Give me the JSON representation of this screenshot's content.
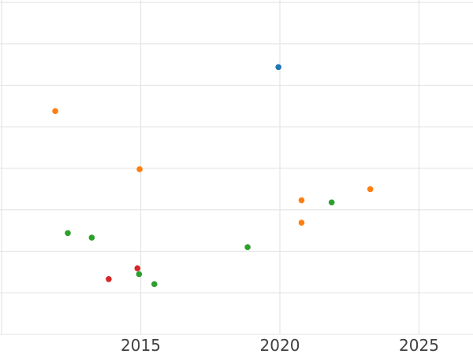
{
  "chart_data": {
    "type": "scatter",
    "title": "",
    "xlabel": "",
    "ylabel": "",
    "x_axis": {
      "tick_labels": [
        "2015",
        "2020",
        "2025"
      ],
      "tick_years": [
        2015,
        2020,
        2025
      ],
      "gridline_years": [
        2010,
        2015,
        2020,
        2025
      ],
      "range": [
        2009.94,
        2026.94
      ]
    },
    "y_axis": {
      "tick_labels_visible": false,
      "note": "y tick labels are not visible in the image (cropped); y values given in gridline units counted up from the bottom visible gridline",
      "gridline_units": [
        0,
        1,
        2,
        3,
        4,
        5,
        6,
        7,
        8
      ],
      "range": [
        -0.47,
        8.06
      ]
    },
    "grid": {
      "visible": true,
      "color": "#e6e6e6"
    },
    "legend": {
      "visible": false
    },
    "background": "#ffffff",
    "tick_label_color": "#404040",
    "marker": {
      "shape": "circle",
      "radius_px": 3.8
    },
    "series": [
      {
        "name": "blue",
        "color": "#1f77b4",
        "points": [
          {
            "x": 2019.95,
            "y": 6.44
          }
        ]
      },
      {
        "name": "orange",
        "color": "#ff7f0e",
        "points": [
          {
            "x": 2011.93,
            "y": 5.38
          },
          {
            "x": 2014.96,
            "y": 3.98
          },
          {
            "x": 2020.78,
            "y": 3.23
          },
          {
            "x": 2020.78,
            "y": 2.69
          },
          {
            "x": 2023.25,
            "y": 3.5
          }
        ]
      },
      {
        "name": "red",
        "color": "#d62728",
        "points": [
          {
            "x": 2013.85,
            "y": 1.33
          },
          {
            "x": 2014.88,
            "y": 1.59
          }
        ]
      },
      {
        "name": "green",
        "color": "#2ca02c",
        "points": [
          {
            "x": 2012.38,
            "y": 2.44
          },
          {
            "x": 2013.24,
            "y": 2.33
          },
          {
            "x": 2014.94,
            "y": 1.45
          },
          {
            "x": 2015.49,
            "y": 1.21
          },
          {
            "x": 2018.84,
            "y": 2.1
          },
          {
            "x": 2021.86,
            "y": 3.18
          }
        ]
      }
    ]
  }
}
